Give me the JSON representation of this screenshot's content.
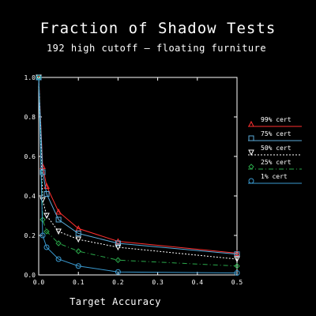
{
  "chart_data": {
    "type": "line",
    "title": "Fraction of Shadow Tests",
    "subtitle": "192 high cutoff — floating furniture",
    "xlabel": "Target Accuracy",
    "ylabel": "",
    "xlim": [
      0,
      0.5
    ],
    "ylim": [
      0,
      1.0
    ],
    "xticks": [
      0.0,
      0.1,
      0.2,
      0.3,
      0.4,
      0.5
    ],
    "xtick_labels": [
      "0.0",
      "0.1",
      "0.2",
      "0.3",
      "0.4",
      "0.5"
    ],
    "yticks": [
      0.0,
      0.2,
      0.4,
      0.6,
      0.8,
      1.0
    ],
    "ytick_labels": [
      "0.0",
      "0.2",
      "0.4",
      "0.6",
      "0.8",
      "1.0"
    ],
    "grid": false,
    "legend_position": "right",
    "x": [
      0.0,
      0.01,
      0.02,
      0.05,
      0.1,
      0.2,
      0.5
    ],
    "series": [
      {
        "name": "99% cert",
        "values": [
          1.0,
          0.55,
          0.45,
          0.32,
          0.235,
          0.17,
          0.11
        ],
        "color": "#ff3030",
        "dash": "",
        "marker": "triangle-up"
      },
      {
        "name": "75% cert",
        "values": [
          1.0,
          0.52,
          0.41,
          0.28,
          0.21,
          0.16,
          0.105
        ],
        "color": "#5aaad8",
        "dash": "",
        "marker": "square"
      },
      {
        "name": "50% cert",
        "values": [
          1.0,
          0.38,
          0.3,
          0.22,
          0.18,
          0.14,
          0.08
        ],
        "color": "#ffffff",
        "dash": "2,2",
        "marker": "triangle-down"
      },
      {
        "name": "25% cert",
        "values": [
          1.0,
          0.28,
          0.22,
          0.16,
          0.12,
          0.075,
          0.045
        ],
        "color": "#2aa84a",
        "dash": "6,3,1,3",
        "marker": "diamond"
      },
      {
        "name": "1% cert",
        "values": [
          1.0,
          0.2,
          0.14,
          0.08,
          0.045,
          0.015,
          0.01
        ],
        "color": "#3a9ad0",
        "dash": "",
        "marker": "circle"
      }
    ]
  }
}
